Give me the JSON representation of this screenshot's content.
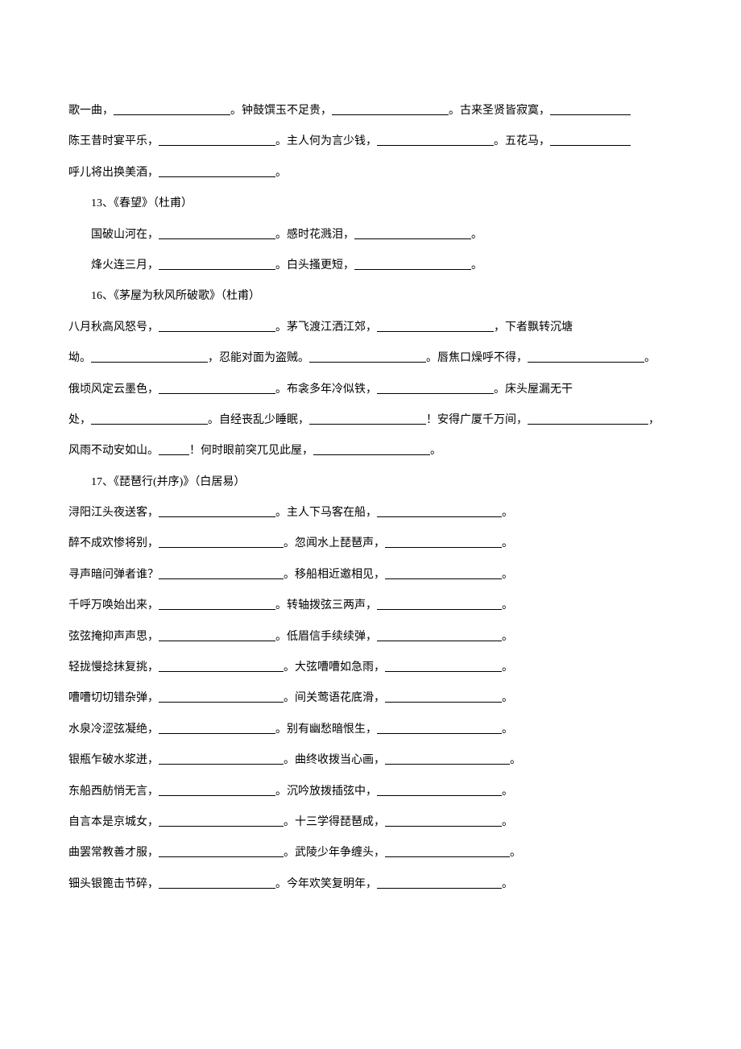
{
  "lines": [
    {
      "indent": false,
      "segments": [
        {
          "t": "text",
          "v": "歌一曲，"
        },
        {
          "t": "blank",
          "w": 145
        },
        {
          "t": "text",
          "v": "。钟鼓馔玉不足贵，"
        },
        {
          "t": "blank",
          "w": 145
        },
        {
          "t": "text",
          "v": "。古来圣贤皆寂寞，"
        },
        {
          "t": "blank",
          "w": 100
        }
      ]
    },
    {
      "indent": false,
      "segments": [
        {
          "t": "text",
          "v": "陈王昔时宴平乐，"
        },
        {
          "t": "blank",
          "w": 145
        },
        {
          "t": "text",
          "v": "。主人何为言少钱，"
        },
        {
          "t": "blank",
          "w": 145
        },
        {
          "t": "text",
          "v": "。五花马，"
        },
        {
          "t": "blank",
          "w": 100
        }
      ]
    },
    {
      "indent": false,
      "segments": [
        {
          "t": "text",
          "v": "呼儿将出换美酒，"
        },
        {
          "t": "blank",
          "w": 145
        },
        {
          "t": "text",
          "v": "。"
        }
      ]
    },
    {
      "indent": true,
      "segments": [
        {
          "t": "text",
          "v": "13、《春望》（杜甫）"
        }
      ]
    },
    {
      "indent": true,
      "segments": [
        {
          "t": "text",
          "v": "国破山河在，"
        },
        {
          "t": "blank",
          "w": 145
        },
        {
          "t": "text",
          "v": "。感时花溅泪，"
        },
        {
          "t": "blank",
          "w": 145
        },
        {
          "t": "text",
          "v": "。"
        }
      ]
    },
    {
      "indent": true,
      "segments": [
        {
          "t": "text",
          "v": "烽火连三月，"
        },
        {
          "t": "blank",
          "w": 145
        },
        {
          "t": "text",
          "v": "。白头搔更短，"
        },
        {
          "t": "blank",
          "w": 145
        },
        {
          "t": "text",
          "v": "。"
        }
      ]
    },
    {
      "indent": true,
      "segments": [
        {
          "t": "text",
          "v": "16、《茅屋为秋风所破歌》（杜甫）"
        }
      ]
    },
    {
      "indent": false,
      "segments": [
        {
          "t": "text",
          "v": "八月秋高风怒号，"
        },
        {
          "t": "blank",
          "w": 145
        },
        {
          "t": "text",
          "v": "。茅飞渡江洒江郊，"
        },
        {
          "t": "blank",
          "w": 145
        },
        {
          "t": "text",
          "v": "，下者飘转沉塘"
        }
      ]
    },
    {
      "indent": false,
      "segments": [
        {
          "t": "text",
          "v": "坳。"
        },
        {
          "t": "blank",
          "w": 145
        },
        {
          "t": "text",
          "v": "，忍能对面为盗贼。"
        },
        {
          "t": "blank",
          "w": 145
        },
        {
          "t": "text",
          "v": "。唇焦口燥呼不得，"
        },
        {
          "t": "blank",
          "w": 145
        },
        {
          "t": "text",
          "v": "。"
        }
      ]
    },
    {
      "indent": false,
      "segments": [
        {
          "t": "text",
          "v": "俄顷风定云墨色，"
        },
        {
          "t": "blank",
          "w": 145
        },
        {
          "t": "text",
          "v": "。布衾多年冷似铁，"
        },
        {
          "t": "blank",
          "w": 145
        },
        {
          "t": "text",
          "v": "。床头屋漏无干"
        }
      ]
    },
    {
      "indent": false,
      "segments": [
        {
          "t": "text",
          "v": "处，"
        },
        {
          "t": "blank",
          "w": 145
        },
        {
          "t": "text",
          "v": "。自经丧乱少睡眠，"
        },
        {
          "t": "blank",
          "w": 145
        },
        {
          "t": "text",
          "v": "！安得广厦千万间，"
        },
        {
          "t": "blank",
          "w": 150
        },
        {
          "t": "text",
          "v": "，"
        }
      ]
    },
    {
      "indent": false,
      "segments": [
        {
          "t": "text",
          "v": "风雨不动安如山。"
        },
        {
          "t": "blank",
          "w": 38
        },
        {
          "t": "text",
          "v": "！何时眼前突兀见此屋，"
        },
        {
          "t": "blank",
          "w": 145
        },
        {
          "t": "text",
          "v": "。"
        }
      ]
    },
    {
      "indent": true,
      "segments": [
        {
          "t": "text",
          "v": "17、《琵琶行(并序)》（白居易）"
        }
      ]
    },
    {
      "indent": false,
      "segments": [
        {
          "t": "text",
          "v": "浔阳江头夜送客，"
        },
        {
          "t": "blank",
          "w": 145
        },
        {
          "t": "text",
          "v": "。主人下马客在船，"
        },
        {
          "t": "blank",
          "w": 155
        },
        {
          "t": "text",
          "v": "。"
        }
      ]
    },
    {
      "indent": false,
      "segments": [
        {
          "t": "text",
          "v": "醉不成欢惨将别，"
        },
        {
          "t": "blank",
          "w": 155
        },
        {
          "t": "text",
          "v": "。忽闻水上琵琶声，"
        },
        {
          "t": "blank",
          "w": 145
        },
        {
          "t": "text",
          "v": "。"
        }
      ]
    },
    {
      "indent": false,
      "segments": [
        {
          "t": "text",
          "v": "寻声暗问弹者谁？"
        },
        {
          "t": "blank",
          "w": 155
        },
        {
          "t": "text",
          "v": "。移船相近邀相见，"
        },
        {
          "t": "blank",
          "w": 145
        },
        {
          "t": "text",
          "v": "。"
        }
      ]
    },
    {
      "indent": false,
      "segments": [
        {
          "t": "text",
          "v": "千呼万唤始出来，"
        },
        {
          "t": "blank",
          "w": 145
        },
        {
          "t": "text",
          "v": "。转轴拨弦三两声，"
        },
        {
          "t": "blank",
          "w": 155
        },
        {
          "t": "text",
          "v": "。"
        }
      ]
    },
    {
      "indent": false,
      "segments": [
        {
          "t": "text",
          "v": "弦弦掩抑声声思，"
        },
        {
          "t": "blank",
          "w": 145
        },
        {
          "t": "text",
          "v": "。低眉信手续续弹，"
        },
        {
          "t": "blank",
          "w": 155
        },
        {
          "t": "text",
          "v": "。"
        }
      ]
    },
    {
      "indent": false,
      "segments": [
        {
          "t": "text",
          "v": "轻拢慢捻抺复挑，"
        },
        {
          "t": "blank",
          "w": 155
        },
        {
          "t": "text",
          "v": "。大弦嘈嘈如急雨，"
        },
        {
          "t": "blank",
          "w": 145
        },
        {
          "t": "text",
          "v": "。"
        }
      ]
    },
    {
      "indent": false,
      "segments": [
        {
          "t": "text",
          "v": "嘈嘈切切错杂弹，"
        },
        {
          "t": "blank",
          "w": 155
        },
        {
          "t": "text",
          "v": "。间关莺语花底滑，"
        },
        {
          "t": "blank",
          "w": 145
        },
        {
          "t": "text",
          "v": "。"
        }
      ]
    },
    {
      "indent": false,
      "segments": [
        {
          "t": "text",
          "v": "水泉冷涩弦凝绝，"
        },
        {
          "t": "blank",
          "w": 145
        },
        {
          "t": "text",
          "v": "。别有幽愁暗恨生，"
        },
        {
          "t": "blank",
          "w": 155
        },
        {
          "t": "text",
          "v": "。"
        }
      ]
    },
    {
      "indent": false,
      "segments": [
        {
          "t": "text",
          "v": "银瓶乍破水浆迸，"
        },
        {
          "t": "blank",
          "w": 155
        },
        {
          "t": "text",
          "v": "。曲终收拨当心画，"
        },
        {
          "t": "blank",
          "w": 155
        },
        {
          "t": "text",
          "v": "。"
        }
      ]
    },
    {
      "indent": false,
      "segments": [
        {
          "t": "text",
          "v": "东船西舫悄无言，"
        },
        {
          "t": "blank",
          "w": 145
        },
        {
          "t": "text",
          "v": "。沉吟放拨插弦中，"
        },
        {
          "t": "blank",
          "w": 155
        },
        {
          "t": "text",
          "v": "。"
        }
      ]
    },
    {
      "indent": false,
      "segments": [
        {
          "t": "text",
          "v": "自言本是京城女，"
        },
        {
          "t": "blank",
          "w": 155
        },
        {
          "t": "text",
          "v": "。十三学得琵琶成，"
        },
        {
          "t": "blank",
          "w": 145
        },
        {
          "t": "text",
          "v": "。"
        }
      ]
    },
    {
      "indent": false,
      "segments": [
        {
          "t": "text",
          "v": "曲罢常教善才服，"
        },
        {
          "t": "blank",
          "w": 155
        },
        {
          "t": "text",
          "v": "。武陵少年争缠头，"
        },
        {
          "t": "blank",
          "w": 155
        },
        {
          "t": "text",
          "v": "。"
        }
      ]
    },
    {
      "indent": false,
      "segments": [
        {
          "t": "text",
          "v": "钿头银篦击节碎，"
        },
        {
          "t": "blank",
          "w": 145
        },
        {
          "t": "text",
          "v": "。今年欢笑复明年，"
        },
        {
          "t": "blank",
          "w": 155
        },
        {
          "t": "text",
          "v": "。"
        }
      ]
    }
  ]
}
